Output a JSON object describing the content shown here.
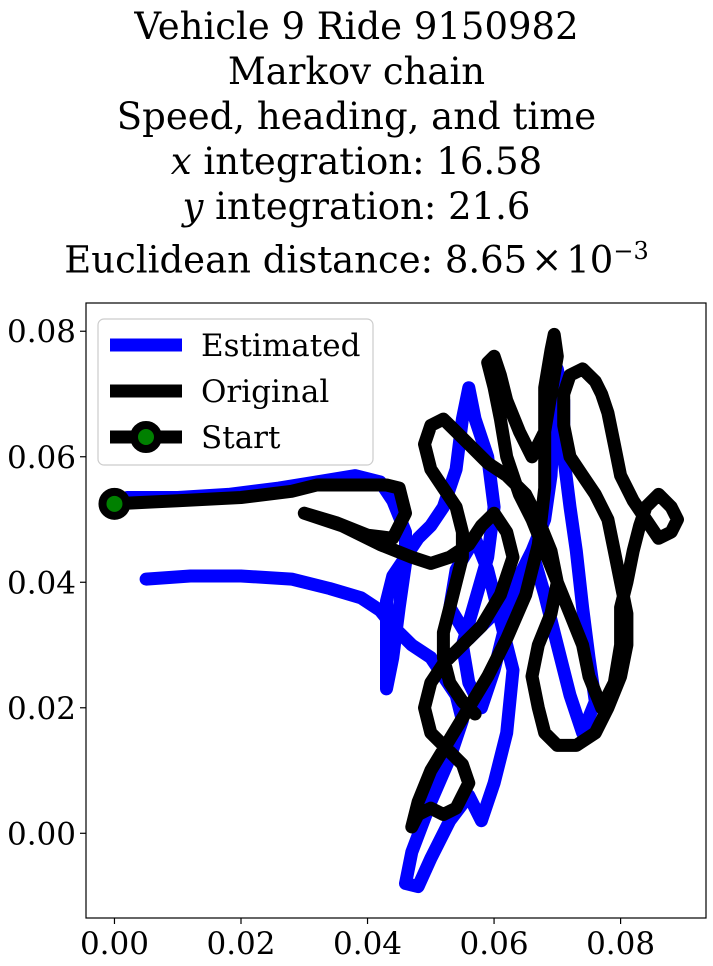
{
  "chart_data": {
    "type": "line",
    "title_lines": [
      "Vehicle 9 Ride 9150982",
      "Markov chain",
      "Speed, heading, and time",
      "x integration: 16.58",
      "y integration: 21.6",
      "Euclidean distance: 8.65 × 10−3"
    ],
    "title_parts": {
      "x_var": "x",
      "x_rest": " integration: 16.58",
      "y_var": "y",
      "y_rest": " integration: 21.6",
      "dist_text": "Euclidean distance: 8.65",
      "dist_times": "×",
      "dist_base": "10",
      "dist_exp": "−3"
    },
    "xlabel": "",
    "ylabel": "",
    "xlim": [
      -0.0045,
      0.0935
    ],
    "ylim": [
      -0.0135,
      0.0845
    ],
    "xticks": [
      0.0,
      0.02,
      0.04,
      0.06,
      0.08
    ],
    "yticks": [
      0.0,
      0.02,
      0.04,
      0.06,
      0.08
    ],
    "xtick_labels": [
      "0.00",
      "0.02",
      "0.04",
      "0.06",
      "0.08"
    ],
    "ytick_labels": [
      "0.00",
      "0.02",
      "0.04",
      "0.06",
      "0.08"
    ],
    "legend_position": "top-left",
    "legend": [
      "Estimated",
      "Original",
      "Start"
    ],
    "grid": false,
    "series": [
      {
        "name": "Estimated",
        "color": "#0000ff",
        "points": [
          [
            0.005,
            0.0405
          ],
          [
            0.012,
            0.041
          ],
          [
            0.02,
            0.041
          ],
          [
            0.028,
            0.0405
          ],
          [
            0.034,
            0.039
          ],
          [
            0.039,
            0.0375
          ],
          [
            0.042,
            0.0355
          ],
          [
            0.044,
            0.033
          ],
          [
            0.047,
            0.03
          ],
          [
            0.05,
            0.028
          ],
          [
            0.052,
            0.025
          ],
          [
            0.054,
            0.022
          ],
          [
            0.055,
            0.018
          ],
          [
            0.053,
            0.012
          ],
          [
            0.05,
            0.005
          ],
          [
            0.047,
            -0.003
          ],
          [
            0.046,
            -0.008
          ],
          [
            0.048,
            -0.0085
          ],
          [
            0.05,
            -0.004
          ],
          [
            0.053,
            0.002
          ],
          [
            0.056,
            0.006
          ],
          [
            0.058,
            0.002
          ],
          [
            0.06,
            0.008
          ],
          [
            0.062,
            0.016
          ],
          [
            0.063,
            0.026
          ],
          [
            0.061,
            0.034
          ],
          [
            0.059,
            0.042
          ],
          [
            0.057,
            0.047
          ],
          [
            0.054,
            0.042
          ],
          [
            0.053,
            0.036
          ],
          [
            0.056,
            0.031
          ],
          [
            0.06,
            0.035
          ],
          [
            0.064,
            0.04
          ],
          [
            0.066,
            0.045
          ],
          [
            0.068,
            0.05
          ],
          [
            0.069,
            0.057
          ],
          [
            0.0695,
            0.066
          ],
          [
            0.07,
            0.074
          ],
          [
            0.071,
            0.069
          ],
          [
            0.071,
            0.06
          ],
          [
            0.072,
            0.052
          ],
          [
            0.073,
            0.045
          ],
          [
            0.074,
            0.036
          ],
          [
            0.075,
            0.028
          ],
          [
            0.076,
            0.021
          ],
          [
            0.074,
            0.016
          ],
          [
            0.072,
            0.022
          ],
          [
            0.07,
            0.03
          ],
          [
            0.068,
            0.038
          ],
          [
            0.066,
            0.045
          ],
          [
            0.064,
            0.041
          ],
          [
            0.062,
            0.034
          ],
          [
            0.06,
            0.026
          ],
          [
            0.058,
            0.02
          ],
          [
            0.056,
            0.024
          ],
          [
            0.055,
            0.03
          ],
          [
            0.057,
            0.037
          ],
          [
            0.059,
            0.044
          ],
          [
            0.06,
            0.052
          ],
          [
            0.059,
            0.06
          ],
          [
            0.057,
            0.066
          ],
          [
            0.056,
            0.071
          ],
          [
            0.055,
            0.066
          ],
          [
            0.054,
            0.058
          ],
          [
            0.052,
            0.052
          ],
          [
            0.05,
            0.049
          ],
          [
            0.048,
            0.047
          ],
          [
            0.046,
            0.044
          ],
          [
            0.044,
            0.041
          ],
          [
            0.043,
            0.037
          ],
          [
            0.043,
            0.03
          ],
          [
            0.043,
            0.023
          ],
          [
            0.044,
            0.028
          ],
          [
            0.045,
            0.036
          ],
          [
            0.046,
            0.043
          ],
          [
            0.046,
            0.048
          ],
          [
            0.044,
            0.053
          ],
          [
            0.042,
            0.056
          ],
          [
            0.038,
            0.057
          ],
          [
            0.032,
            0.056
          ],
          [
            0.026,
            0.055
          ],
          [
            0.018,
            0.054
          ],
          [
            0.01,
            0.0535
          ],
          [
            0.002,
            0.0535
          ],
          [
            0.0,
            0.053
          ]
        ]
      },
      {
        "name": "Original",
        "color": "#000000",
        "points": [
          [
            0.0,
            0.0525
          ],
          [
            0.01,
            0.053
          ],
          [
            0.02,
            0.0535
          ],
          [
            0.028,
            0.0545
          ],
          [
            0.032,
            0.0555
          ],
          [
            0.038,
            0.0555
          ],
          [
            0.043,
            0.0555
          ],
          [
            0.045,
            0.055
          ],
          [
            0.046,
            0.051
          ],
          [
            0.044,
            0.047
          ],
          [
            0.04,
            0.0475
          ],
          [
            0.035,
            0.0495
          ],
          [
            0.03,
            0.051
          ],
          [
            0.036,
            0.049
          ],
          [
            0.042,
            0.046
          ],
          [
            0.047,
            0.044
          ],
          [
            0.05,
            0.043
          ],
          [
            0.053,
            0.044
          ],
          [
            0.056,
            0.046
          ],
          [
            0.058,
            0.049
          ],
          [
            0.06,
            0.051
          ],
          [
            0.062,
            0.048
          ],
          [
            0.063,
            0.044
          ],
          [
            0.061,
            0.038
          ],
          [
            0.058,
            0.033
          ],
          [
            0.055,
            0.03
          ],
          [
            0.052,
            0.027
          ],
          [
            0.05,
            0.024
          ],
          [
            0.049,
            0.02
          ],
          [
            0.05,
            0.016
          ],
          [
            0.052,
            0.014
          ],
          [
            0.055,
            0.011
          ],
          [
            0.056,
            0.008
          ],
          [
            0.054,
            0.004
          ],
          [
            0.052,
            0.003
          ],
          [
            0.05,
            0.004
          ],
          [
            0.048,
            0.003
          ],
          [
            0.047,
            0.001
          ],
          [
            0.048,
            0.005
          ],
          [
            0.05,
            0.01
          ],
          [
            0.053,
            0.015
          ],
          [
            0.056,
            0.02
          ],
          [
            0.059,
            0.025
          ],
          [
            0.062,
            0.031
          ],
          [
            0.065,
            0.038
          ],
          [
            0.067,
            0.046
          ],
          [
            0.068,
            0.055
          ],
          [
            0.068,
            0.064
          ],
          [
            0.068,
            0.071
          ],
          [
            0.069,
            0.077
          ],
          [
            0.0695,
            0.0795
          ],
          [
            0.07,
            0.076
          ],
          [
            0.069,
            0.07
          ],
          [
            0.068,
            0.064
          ],
          [
            0.066,
            0.06
          ],
          [
            0.064,
            0.064
          ],
          [
            0.062,
            0.069
          ],
          [
            0.061,
            0.073
          ],
          [
            0.06,
            0.076
          ],
          [
            0.059,
            0.075
          ],
          [
            0.06,
            0.071
          ],
          [
            0.061,
            0.066
          ],
          [
            0.062,
            0.06
          ],
          [
            0.064,
            0.054
          ],
          [
            0.066,
            0.05
          ],
          [
            0.068,
            0.045
          ],
          [
            0.07,
            0.04
          ],
          [
            0.072,
            0.035
          ],
          [
            0.074,
            0.03
          ],
          [
            0.075,
            0.025
          ],
          [
            0.077,
            0.02
          ],
          [
            0.079,
            0.024
          ],
          [
            0.08,
            0.03
          ],
          [
            0.08,
            0.036
          ],
          [
            0.081,
            0.04
          ],
          [
            0.082,
            0.045
          ],
          [
            0.083,
            0.049
          ],
          [
            0.084,
            0.052
          ],
          [
            0.086,
            0.054
          ],
          [
            0.088,
            0.052
          ],
          [
            0.089,
            0.05
          ],
          [
            0.088,
            0.048
          ],
          [
            0.086,
            0.047
          ],
          [
            0.084,
            0.05
          ],
          [
            0.082,
            0.053
          ],
          [
            0.08,
            0.057
          ],
          [
            0.079,
            0.062
          ],
          [
            0.078,
            0.067
          ],
          [
            0.077,
            0.07
          ],
          [
            0.076,
            0.072
          ],
          [
            0.074,
            0.074
          ],
          [
            0.072,
            0.073
          ],
          [
            0.071,
            0.07
          ],
          [
            0.071,
            0.065
          ],
          [
            0.072,
            0.06
          ],
          [
            0.074,
            0.057
          ],
          [
            0.076,
            0.054
          ],
          [
            0.078,
            0.05
          ],
          [
            0.079,
            0.045
          ],
          [
            0.08,
            0.04
          ],
          [
            0.081,
            0.035
          ],
          [
            0.081,
            0.03
          ],
          [
            0.08,
            0.025
          ],
          [
            0.078,
            0.02
          ],
          [
            0.076,
            0.016
          ],
          [
            0.073,
            0.014
          ],
          [
            0.07,
            0.014
          ],
          [
            0.068,
            0.016
          ],
          [
            0.067,
            0.02
          ],
          [
            0.066,
            0.025
          ],
          [
            0.067,
            0.03
          ],
          [
            0.069,
            0.035
          ],
          [
            0.07,
            0.04
          ],
          [
            0.069,
            0.045
          ],
          [
            0.067,
            0.05
          ],
          [
            0.065,
            0.054
          ],
          [
            0.062,
            0.057
          ],
          [
            0.059,
            0.059
          ],
          [
            0.056,
            0.062
          ],
          [
            0.054,
            0.064
          ],
          [
            0.052,
            0.066
          ],
          [
            0.05,
            0.065
          ],
          [
            0.049,
            0.062
          ],
          [
            0.05,
            0.058
          ],
          [
            0.052,
            0.055
          ],
          [
            0.054,
            0.052
          ],
          [
            0.055,
            0.048
          ],
          [
            0.055,
            0.044
          ],
          [
            0.054,
            0.04
          ],
          [
            0.053,
            0.036
          ],
          [
            0.052,
            0.032
          ],
          [
            0.052,
            0.028
          ],
          [
            0.053,
            0.024
          ],
          [
            0.055,
            0.021
          ],
          [
            0.057,
            0.019
          ]
        ]
      }
    ],
    "start_point": [
      0.0,
      0.0525
    ],
    "start_marker_color": "#008000"
  }
}
